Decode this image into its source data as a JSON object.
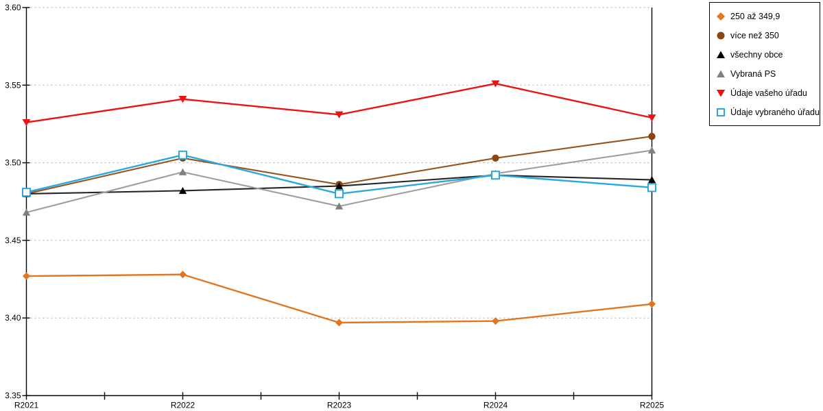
{
  "chart_data": {
    "type": "line",
    "title": "",
    "xlabel": "",
    "ylabel": "",
    "grid": "horizontal-dotted",
    "legend_position": "top-right",
    "x_categories": [
      "R2021",
      "R2022",
      "R2023",
      "R2024",
      "R2025"
    ],
    "y_axis": {
      "min": 3.35,
      "max": 3.6,
      "step": 0.05,
      "tick_labels": [
        "3.35",
        "3.40",
        "3.45",
        "3.50",
        "3.55",
        "3.60"
      ]
    },
    "series": [
      {
        "name": "250 až 349,9",
        "marker": "diamond",
        "color": "#E2751E",
        "line_color": "#E2751E",
        "values": [
          3.427,
          3.428,
          3.397,
          3.398,
          3.409
        ]
      },
      {
        "name": "více než 350",
        "marker": "circle",
        "color": "#8B4513",
        "line_color": "#96521F",
        "values": [
          3.48,
          3.503,
          3.486,
          3.503,
          3.517
        ]
      },
      {
        "name": "všechny obce",
        "marker": "triangle-up",
        "color": "#000000",
        "line_color": "#262626",
        "values": [
          3.48,
          3.482,
          3.485,
          3.492,
          3.489
        ]
      },
      {
        "name": "Vybraná PS",
        "marker": "triangle-up",
        "color": "#808080",
        "line_color": "#9E9E9E",
        "values": [
          3.468,
          3.494,
          3.472,
          3.493,
          3.508
        ]
      },
      {
        "name": "Údaje vašeho úřadu",
        "marker": "triangle-down",
        "color": "#EE1111",
        "line_color": "#EE1111",
        "values": [
          3.526,
          3.541,
          3.531,
          3.551,
          3.529
        ]
      },
      {
        "name": "Údaje vybraného úřadu",
        "marker": "square-open",
        "color": "#29A8E0",
        "line_color": "#29A8E0",
        "values": [
          3.481,
          3.505,
          3.48,
          3.492,
          3.484
        ]
      }
    ],
    "axis_color": "#000000",
    "gridline_color": "#A8A8A8"
  }
}
